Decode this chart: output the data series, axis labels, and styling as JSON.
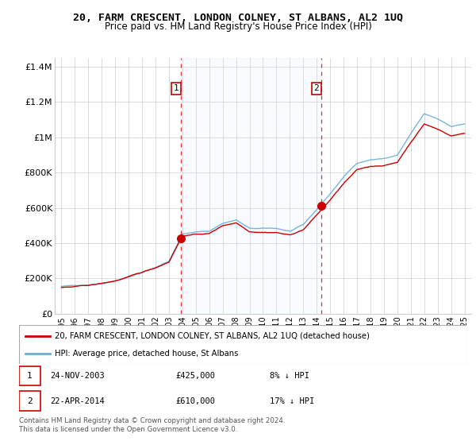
{
  "title": "20, FARM CRESCENT, LONDON COLNEY, ST ALBANS, AL2 1UQ",
  "subtitle": "Price paid vs. HM Land Registry's House Price Index (HPI)",
  "ylabel_ticks": [
    "£0",
    "£200K",
    "£400K",
    "£600K",
    "£800K",
    "£1M",
    "£1.2M",
    "£1.4M"
  ],
  "ylabel_values": [
    0,
    200000,
    400000,
    600000,
    800000,
    1000000,
    1200000,
    1400000
  ],
  "ylim": [
    0,
    1450000
  ],
  "legend_house": "20, FARM CRESCENT, LONDON COLNEY, ST ALBANS, AL2 1UQ (detached house)",
  "legend_hpi": "HPI: Average price, detached house, St Albans",
  "transaction1_date": "24-NOV-2003",
  "transaction1_price": "£425,000",
  "transaction1_hpi": "8% ↓ HPI",
  "transaction2_date": "22-APR-2014",
  "transaction2_price": "£610,000",
  "transaction2_hpi": "17% ↓ HPI",
  "footer": "Contains HM Land Registry data © Crown copyright and database right 2024.\nThis data is licensed under the Open Government Licence v3.0.",
  "house_color": "#cc0000",
  "hpi_color": "#6baed6",
  "shade_color": "#ddeeff",
  "marker1_x": 2003.9,
  "marker1_y": 425000,
  "marker2_x": 2014.33,
  "marker2_y": 610000,
  "vline1_x": 2003.9,
  "vline2_x": 2014.33,
  "xlim": [
    1994.5,
    2025.5
  ],
  "xtick_years": [
    1995,
    1996,
    1997,
    1998,
    1999,
    2000,
    2001,
    2002,
    2003,
    2004,
    2005,
    2006,
    2007,
    2008,
    2009,
    2010,
    2011,
    2012,
    2013,
    2014,
    2015,
    2016,
    2017,
    2018,
    2019,
    2020,
    2021,
    2022,
    2023,
    2024,
    2025
  ]
}
